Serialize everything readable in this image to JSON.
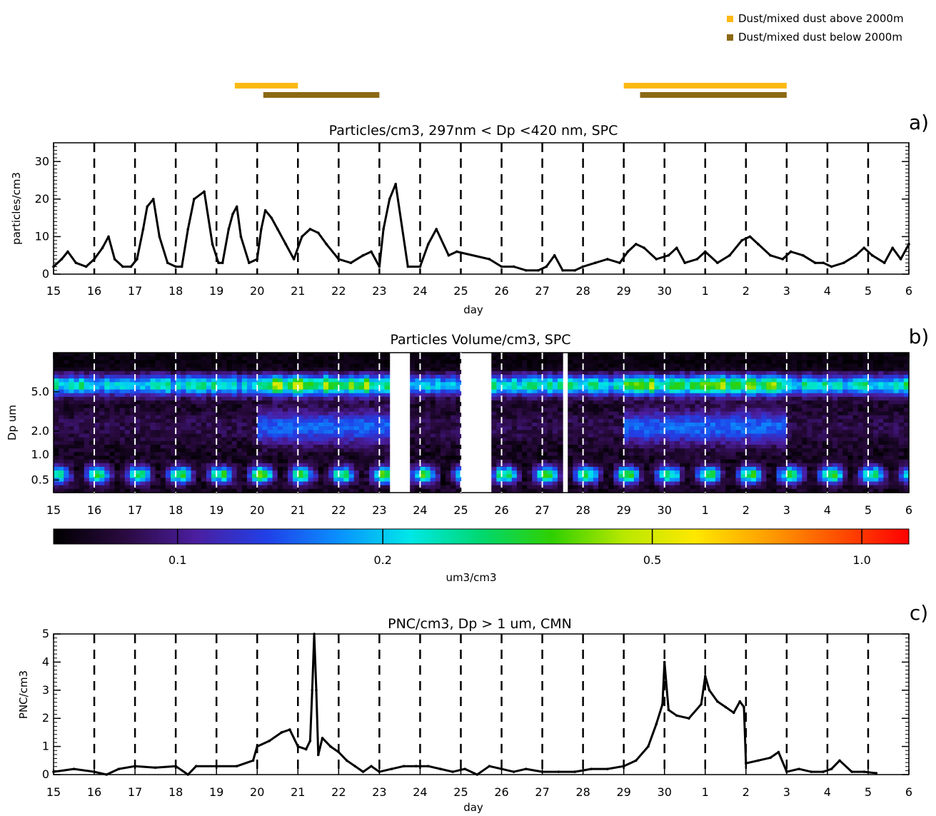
{
  "legend": {
    "items": [
      {
        "label": "Dust/mixed dust  above 2000m",
        "color": "#FDB913"
      },
      {
        "label": "Dust/mixed dust below 2000m",
        "color": "#8B6914"
      }
    ]
  },
  "dust_periods": {
    "above_2000m": [
      [
        19.45,
        21.0
      ],
      [
        29.0,
        33.0
      ]
    ],
    "below_2000m": [
      [
        20.15,
        23.0
      ],
      [
        29.4,
        33.0
      ]
    ]
  },
  "chart_data": [
    {
      "id": "a",
      "panel_label": "a)",
      "type": "scatter",
      "title": "Particles/cm3, 297nm < Dp <420 nm, SPC",
      "xlabel": "day",
      "ylabel": "particles/cm3",
      "xlim": [
        15,
        36
      ],
      "ylim": [
        0,
        35
      ],
      "xtick_labels": [
        "15",
        "16",
        "17",
        "18",
        "19",
        "20",
        "21",
        "22",
        "23",
        "24",
        "25",
        "26",
        "27",
        "28",
        "29",
        "30",
        "1",
        "2",
        "3",
        "4",
        "5",
        "6"
      ],
      "yticks": [
        0,
        10,
        20,
        30
      ],
      "gridlines": "dashed vertical at each day",
      "series": [
        {
          "color": "#000000",
          "x": [
            15.0,
            15.2,
            15.35,
            15.55,
            15.8,
            16.0,
            16.2,
            16.35,
            16.5,
            16.7,
            16.9,
            17.05,
            17.2,
            17.3,
            17.45,
            17.6,
            17.8,
            18.0,
            18.15,
            18.3,
            18.45,
            18.7,
            18.9,
            19.05,
            19.15,
            19.3,
            19.4,
            19.5,
            19.6,
            19.8,
            20.0,
            20.1,
            20.2,
            20.35,
            20.5,
            20.7,
            20.9,
            21.1,
            21.3,
            21.5,
            21.7,
            22.0,
            22.3,
            22.6,
            22.8,
            23.0,
            23.1,
            23.25,
            23.4,
            23.7,
            24.0,
            24.2,
            24.4,
            24.7,
            24.9,
            25.7,
            26.0,
            26.3,
            26.6,
            26.9,
            27.1,
            27.3,
            27.5,
            27.8,
            28.0,
            28.3,
            28.6,
            28.9,
            29.1,
            29.3,
            29.5,
            29.8,
            30.1,
            30.3,
            30.5,
            30.8,
            31.0,
            31.3,
            31.6,
            31.9,
            32.1,
            32.3,
            32.6,
            32.9,
            33.1,
            33.4,
            33.7,
            33.9,
            34.1,
            34.4,
            34.7,
            34.9,
            35.1,
            35.4,
            35.6,
            35.8,
            36.0
          ],
          "y": [
            2,
            4,
            6,
            3,
            2,
            4,
            7,
            10,
            4,
            2,
            2,
            4,
            12,
            18,
            20,
            10,
            3,
            2,
            2,
            12,
            20,
            22,
            8,
            3,
            3,
            12,
            16,
            18,
            10,
            3,
            4,
            12,
            17,
            15,
            12,
            8,
            4,
            10,
            12,
            11,
            8,
            4,
            3,
            5,
            6,
            2,
            12,
            20,
            24,
            2,
            2,
            8,
            12,
            5,
            6,
            4,
            2,
            2,
            1,
            1,
            2,
            5,
            1,
            1,
            2,
            3,
            4,
            3,
            6,
            8,
            7,
            4,
            5,
            7,
            3,
            4,
            6,
            3,
            5,
            9,
            10,
            8,
            5,
            4,
            6,
            5,
            3,
            3,
            2,
            3,
            5,
            7,
            5,
            3,
            7,
            4,
            8
          ]
        }
      ]
    },
    {
      "id": "b",
      "panel_label": "b)",
      "type": "heatmap",
      "title": "Particles Volume/cm3, SPC",
      "ylabel": "Dp um",
      "xlim": [
        15,
        36
      ],
      "xtick_labels": [
        "15",
        "16",
        "17",
        "18",
        "19",
        "20",
        "21",
        "22",
        "23",
        "24",
        "25",
        "26",
        "27",
        "28",
        "29",
        "30",
        "1",
        "2",
        "3",
        "4",
        "5",
        "6"
      ],
      "ytick_labels": [
        "0.5",
        "1.0",
        "2.0",
        "5.0"
      ],
      "missing_data_gaps": [
        [
          23.3,
          23.7
        ],
        [
          25.0,
          25.7
        ],
        [
          27.45,
          27.6
        ]
      ],
      "colorbar": {
        "label": "um3/cm3",
        "tick_labels": [
          "0.1",
          "0.2",
          "0.5",
          "1.0"
        ],
        "colors": [
          "#000000",
          "#2a0a40",
          "#4b1ea0",
          "#2040e8",
          "#0a90ff",
          "#00e8e8",
          "#00d870",
          "#30d000",
          "#b8e800",
          "#ffe800",
          "#ffa000",
          "#ff5000",
          "#ff0000"
        ]
      }
    },
    {
      "id": "c",
      "panel_label": "c)",
      "type": "scatter",
      "title": "PNC/cm3, Dp > 1 um, CMN",
      "xlabel": "day",
      "ylabel": "PNC/cm3",
      "xlim": [
        15,
        36
      ],
      "ylim": [
        0,
        5
      ],
      "xtick_labels": [
        "15",
        "16",
        "17",
        "18",
        "19",
        "20",
        "21",
        "22",
        "23",
        "24",
        "25",
        "26",
        "27",
        "28",
        "29",
        "30",
        "1",
        "2",
        "3",
        "4",
        "5",
        "6"
      ],
      "yticks": [
        0,
        1,
        2,
        3,
        4,
        5
      ],
      "gridlines": "dashed vertical at each day",
      "series": [
        {
          "color": "#000000",
          "x": [
            15.0,
            15.5,
            16.0,
            16.3,
            16.6,
            17.0,
            17.5,
            18.0,
            18.3,
            18.5,
            19.0,
            19.5,
            19.9,
            20.0,
            20.3,
            20.6,
            20.8,
            21.0,
            21.2,
            21.3,
            21.35,
            21.4,
            21.45,
            21.5,
            21.6,
            21.8,
            22.0,
            22.2,
            22.4,
            22.6,
            22.8,
            23.0,
            23.3,
            23.6,
            23.9,
            24.2,
            24.5,
            24.8,
            25.1,
            25.4,
            25.7,
            26.0,
            26.3,
            26.6,
            27.0,
            27.4,
            27.8,
            28.2,
            28.6,
            29.0,
            29.3,
            29.6,
            29.8,
            29.95,
            30.0,
            30.1,
            30.3,
            30.6,
            30.9,
            31.0,
            31.1,
            31.3,
            31.5,
            31.7,
            31.85,
            31.95,
            32.0,
            32.3,
            32.6,
            32.8,
            33.0,
            33.3,
            33.6,
            33.9,
            34.1,
            34.3,
            34.6,
            34.9,
            35.2
          ],
          "y": [
            0.1,
            0.2,
            0.1,
            0.0,
            0.2,
            0.3,
            0.25,
            0.3,
            0.0,
            0.3,
            0.3,
            0.3,
            0.5,
            1.0,
            1.2,
            1.5,
            1.6,
            1.0,
            0.9,
            1.2,
            3.0,
            5.0,
            3.0,
            0.7,
            1.3,
            1.0,
            0.8,
            0.5,
            0.3,
            0.1,
            0.3,
            0.1,
            0.2,
            0.3,
            0.3,
            0.3,
            0.2,
            0.1,
            0.2,
            0.0,
            0.3,
            0.2,
            0.1,
            0.2,
            0.1,
            0.1,
            0.1,
            0.2,
            0.2,
            0.3,
            0.5,
            1.0,
            1.8,
            2.5,
            4.0,
            2.3,
            2.1,
            2.0,
            2.5,
            3.5,
            3.0,
            2.6,
            2.4,
            2.2,
            2.6,
            2.4,
            0.4,
            0.5,
            0.6,
            0.8,
            0.1,
            0.2,
            0.1,
            0.1,
            0.2,
            0.5,
            0.1,
            0.1,
            0.05
          ]
        }
      ]
    }
  ]
}
